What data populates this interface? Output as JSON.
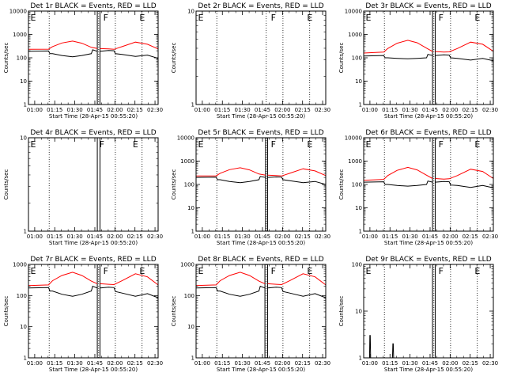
{
  "figure": {
    "background": "#ffffff",
    "events_color": "#000000",
    "lld_color": "#ff0000"
  },
  "x_axis": {
    "label": "Start Time (28-Apr-15 00:55:20)",
    "ticks": [
      "01:00",
      "01:15",
      "01:30",
      "01:45",
      "02:00",
      "02:15",
      "02:30"
    ],
    "tick_minutes": [
      4.67,
      19.67,
      34.67,
      49.67,
      64.67,
      79.67,
      94.67
    ],
    "range_minutes": [
      0,
      97
    ]
  },
  "y_axis": {
    "label": "Counts/sec",
    "scale": "log"
  },
  "chart_data": [
    {
      "type": "line",
      "detector": "1r",
      "title": "Det 1r BLACK = Events, RED = LLD",
      "ylim": [
        1,
        10000
      ],
      "tick_labels": [
        "1",
        "10",
        "100",
        "1000",
        "10000"
      ],
      "markers": [
        {
          "label": "E",
          "minute": 1.5
        },
        {
          "label": "F",
          "minute": 56
        },
        {
          "label": "E",
          "minute": 83
        }
      ],
      "dotted_lines_minutes": [
        15.5,
        52.5,
        65,
        85
      ],
      "gap_minutes": [
        51.5,
        53.5
      ],
      "series": [
        {
          "name": "LLD",
          "color": "#ff0000",
          "minutes": [
            0,
            15,
            18,
            25,
            33,
            40,
            47,
            51.5,
            53.5,
            60,
            64,
            70,
            80,
            89,
            97
          ],
          "values": [
            230,
            235,
            300,
            430,
            520,
            420,
            280,
            250,
            250,
            240,
            230,
            300,
            470,
            380,
            240
          ]
        },
        {
          "name": "Events",
          "color": "#000000",
          "minutes": [
            0,
            15,
            16,
            18,
            25,
            33,
            40,
            47,
            48,
            51.5,
            53.5,
            60,
            64,
            65,
            70,
            80,
            89,
            97
          ],
          "values": [
            190,
            195,
            150,
            150,
            125,
            110,
            125,
            150,
            220,
            190,
            190,
            205,
            200,
            150,
            140,
            115,
            130,
            95
          ]
        }
      ]
    },
    {
      "type": "line",
      "detector": "2r",
      "title": "Det 2r BLACK = Events, RED = LLD",
      "ylim": [
        1,
        10
      ],
      "tick_labels": [
        "1",
        "10"
      ],
      "markers": [
        {
          "label": "E",
          "minute": 1.5
        },
        {
          "label": "F",
          "minute": 56
        },
        {
          "label": "E",
          "minute": 83
        }
      ],
      "dotted_lines_minutes": [
        15.5,
        52.5,
        65,
        85
      ],
      "gap_minutes": [],
      "series": []
    },
    {
      "type": "line",
      "detector": "3r",
      "title": "Det 3r BLACK = Events, RED = LLD",
      "ylim": [
        1,
        10000
      ],
      "tick_labels": [
        "1",
        "10",
        "100",
        "1000",
        "10000"
      ],
      "markers": [
        {
          "label": "E",
          "minute": 1.5
        },
        {
          "label": "F",
          "minute": 56
        },
        {
          "label": "E",
          "minute": 83
        }
      ],
      "dotted_lines_minutes": [
        15.5,
        52.5,
        65,
        85
      ],
      "gap_minutes": [
        51.5,
        53.5
      ],
      "series": [
        {
          "name": "LLD",
          "color": "#ff0000",
          "minutes": [
            0,
            15,
            18,
            25,
            33,
            40,
            47,
            51.5,
            53.5,
            60,
            64,
            70,
            80,
            89,
            97
          ],
          "values": [
            160,
            175,
            250,
            420,
            560,
            440,
            260,
            185,
            185,
            175,
            180,
            250,
            470,
            380,
            190
          ]
        },
        {
          "name": "Events",
          "color": "#000000",
          "minutes": [
            0,
            15,
            16,
            18,
            25,
            33,
            40,
            47,
            48,
            51.5,
            53.5,
            60,
            64,
            65,
            70,
            80,
            89,
            97
          ],
          "values": [
            120,
            125,
            100,
            100,
            95,
            90,
            95,
            100,
            140,
            125,
            125,
            135,
            130,
            100,
            95,
            80,
            95,
            75
          ]
        }
      ]
    },
    {
      "type": "line",
      "detector": "4r",
      "title": "Det 4r BLACK = Events, RED = LLD",
      "ylim": [
        1,
        10
      ],
      "tick_labels": [
        "1",
        "10"
      ],
      "markers": [
        {
          "label": "E",
          "minute": 1.5
        },
        {
          "label": "F",
          "minute": 53
        },
        {
          "label": "E",
          "minute": 78
        }
      ],
      "dotted_lines_minutes": [
        15.5,
        65,
        85
      ],
      "gap_minutes": [
        51.5,
        53.5
      ],
      "series": []
    },
    {
      "type": "line",
      "detector": "5r",
      "title": "Det 5r BLACK = Events, RED = LLD",
      "ylim": [
        1,
        10000
      ],
      "tick_labels": [
        "1",
        "10",
        "100",
        "1000",
        "10000"
      ],
      "markers": [
        {
          "label": "E",
          "minute": 1.5
        },
        {
          "label": "F",
          "minute": 56
        },
        {
          "label": "E",
          "minute": 83
        }
      ],
      "dotted_lines_minutes": [
        15.5,
        52.5,
        65,
        85
      ],
      "gap_minutes": [
        52,
        53.5
      ],
      "series": [
        {
          "name": "LLD",
          "color": "#ff0000",
          "minutes": [
            0,
            15,
            18,
            25,
            33,
            40,
            47,
            52,
            53.5,
            60,
            64,
            70,
            80,
            89,
            97
          ],
          "values": [
            230,
            235,
            300,
            430,
            520,
            420,
            280,
            250,
            250,
            240,
            230,
            300,
            470,
            380,
            240
          ]
        },
        {
          "name": "Events",
          "color": "#000000",
          "minutes": [
            0,
            15,
            16,
            18,
            25,
            33,
            40,
            47,
            48,
            52,
            53.5,
            60,
            64,
            65,
            70,
            80,
            89,
            97
          ],
          "values": [
            200,
            205,
            160,
            160,
            135,
            120,
            135,
            160,
            220,
            200,
            200,
            210,
            205,
            160,
            145,
            120,
            135,
            100
          ]
        }
      ]
    },
    {
      "type": "line",
      "detector": "6r",
      "title": "Det 6r BLACK = Events, RED = LLD",
      "ylim": [
        1,
        10000
      ],
      "tick_labels": [
        "1",
        "10",
        "100",
        "1000",
        "10000"
      ],
      "markers": [
        {
          "label": "E",
          "minute": 1.5
        },
        {
          "label": "F",
          "minute": 56
        },
        {
          "label": "E",
          "minute": 83
        }
      ],
      "dotted_lines_minutes": [
        15.5,
        52.5,
        65,
        85
      ],
      "gap_minutes": [
        51.5,
        53.5
      ],
      "series": [
        {
          "name": "LLD",
          "color": "#ff0000",
          "minutes": [
            0,
            15,
            18,
            25,
            33,
            40,
            47,
            51.5,
            53.5,
            60,
            64,
            70,
            80,
            89,
            97
          ],
          "values": [
            150,
            165,
            240,
            400,
            540,
            420,
            250,
            180,
            180,
            170,
            175,
            240,
            450,
            360,
            180
          ]
        },
        {
          "name": "Events",
          "color": "#000000",
          "minutes": [
            0,
            15,
            16,
            18,
            25,
            33,
            40,
            47,
            48,
            51.5,
            53.5,
            60,
            64,
            65,
            70,
            80,
            89,
            97
          ],
          "values": [
            125,
            130,
            100,
            100,
            90,
            85,
            90,
            100,
            140,
            125,
            125,
            135,
            130,
            95,
            90,
            75,
            90,
            72
          ]
        }
      ]
    },
    {
      "type": "line",
      "detector": "7r",
      "title": "Det 7r BLACK = Events, RED = LLD",
      "ylim": [
        1,
        1000
      ],
      "tick_labels": [
        "1",
        "10",
        "100",
        "1000"
      ],
      "markers": [
        {
          "label": "E",
          "minute": 1.5
        },
        {
          "label": "F",
          "minute": 56
        },
        {
          "label": "E",
          "minute": 83
        }
      ],
      "dotted_lines_minutes": [
        15.5,
        52.5,
        65,
        85
      ],
      "gap_minutes": [
        51.5,
        53.5
      ],
      "series": [
        {
          "name": "LLD",
          "color": "#ff0000",
          "minutes": [
            0,
            15,
            18,
            25,
            33,
            40,
            47,
            51.5,
            53.5,
            60,
            64,
            70,
            80,
            89,
            97
          ],
          "values": [
            210,
            220,
            300,
            440,
            560,
            440,
            290,
            240,
            240,
            230,
            225,
            300,
            500,
            400,
            220
          ]
        },
        {
          "name": "Events",
          "color": "#000000",
          "minutes": [
            0,
            15,
            16,
            18,
            25,
            33,
            40,
            47,
            48,
            51.5,
            53.5,
            60,
            64,
            65,
            70,
            80,
            89,
            97
          ],
          "values": [
            175,
            180,
            140,
            140,
            110,
            95,
            110,
            140,
            200,
            175,
            175,
            185,
            180,
            135,
            120,
            95,
            115,
            85
          ]
        }
      ]
    },
    {
      "type": "line",
      "detector": "8r",
      "title": "Det 8r BLACK = Events, RED = LLD",
      "ylim": [
        1,
        1000
      ],
      "tick_labels": [
        "1",
        "10",
        "100",
        "1000"
      ],
      "markers": [
        {
          "label": "E",
          "minute": 1.5
        },
        {
          "label": "F",
          "minute": 56
        },
        {
          "label": "E",
          "minute": 83
        }
      ],
      "dotted_lines_minutes": [
        15.5,
        52.5,
        65,
        85
      ],
      "gap_minutes": [
        51.5,
        53.5
      ],
      "series": [
        {
          "name": "LLD",
          "color": "#ff0000",
          "minutes": [
            0,
            15,
            18,
            25,
            33,
            40,
            47,
            51.5,
            53.5,
            60,
            64,
            70,
            80,
            89,
            97
          ],
          "values": [
            210,
            220,
            300,
            440,
            560,
            440,
            290,
            240,
            240,
            230,
            225,
            300,
            500,
            400,
            220
          ]
        },
        {
          "name": "Events",
          "color": "#000000",
          "minutes": [
            0,
            15,
            16,
            18,
            25,
            33,
            40,
            47,
            48,
            51.5,
            53.5,
            60,
            64,
            65,
            70,
            80,
            89,
            97
          ],
          "values": [
            175,
            180,
            140,
            140,
            110,
            95,
            110,
            140,
            200,
            175,
            175,
            185,
            180,
            135,
            120,
            95,
            115,
            85
          ]
        }
      ]
    },
    {
      "type": "line",
      "detector": "9r",
      "title": "Det 9r BLACK = Events, RED = LLD",
      "ylim": [
        1,
        100
      ],
      "tick_labels": [
        "1",
        "10",
        "100"
      ],
      "markers": [
        {
          "label": "E",
          "minute": 1.5
        },
        {
          "label": "F",
          "minute": 56
        },
        {
          "label": "E",
          "minute": 83
        }
      ],
      "dotted_lines_minutes": [
        15.5,
        52.5,
        65,
        85
      ],
      "gap_minutes": [
        51.5,
        53.5
      ],
      "series": [
        {
          "name": "Events",
          "color": "#000000",
          "minutes": [
            0,
            4.4,
            4.6,
            4.9,
            5.2,
            21.5,
            21.8,
            22.1,
            22.4,
            97
          ],
          "values": [
            1,
            1,
            3,
            3,
            1,
            1,
            2,
            2,
            1,
            1
          ]
        }
      ]
    }
  ]
}
